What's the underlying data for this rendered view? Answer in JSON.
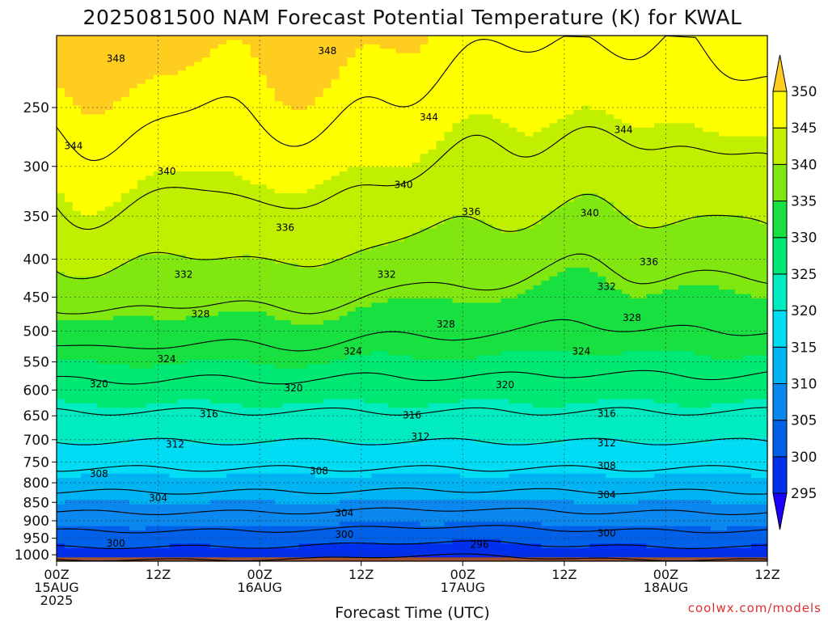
{
  "chart_data": {
    "type": "heatmap",
    "title": "2025081500 NAM Forecast Potential Temperature (K) for KWAL",
    "xlabel": "Forecast Time (UTC)",
    "ylabel": "",
    "x_ticks": [
      {
        "hour": 0,
        "lines": [
          "00Z",
          "15AUG",
          "2025"
        ]
      },
      {
        "hour": 12,
        "lines": [
          "12Z"
        ]
      },
      {
        "hour": 24,
        "lines": [
          "00Z",
          "16AUG"
        ]
      },
      {
        "hour": 36,
        "lines": [
          "12Z"
        ]
      },
      {
        "hour": 48,
        "lines": [
          "00Z",
          "17AUG"
        ]
      },
      {
        "hour": 60,
        "lines": [
          "12Z"
        ]
      },
      {
        "hour": 72,
        "lines": [
          "00Z",
          "18AUG"
        ]
      },
      {
        "hour": 84,
        "lines": [
          "12Z"
        ]
      }
    ],
    "xlim": [
      0,
      84
    ],
    "y_ticks": [
      250,
      300,
      350,
      400,
      450,
      500,
      550,
      600,
      650,
      700,
      750,
      800,
      850,
      900,
      950,
      1000
    ],
    "ylim": [
      1020,
      200
    ],
    "y_scale": "log-pressure",
    "colorbar": {
      "levels": [
        295,
        300,
        305,
        310,
        315,
        320,
        325,
        330,
        335,
        340,
        345,
        350
      ],
      "colors": [
        "#1c00ff",
        "#0030ee",
        "#0060e8",
        "#0a88f0",
        "#00b4f4",
        "#00dcf4",
        "#00ecc0",
        "#00e874",
        "#18e040",
        "#80e810",
        "#c0f000",
        "#ffff00",
        "#ffcc20"
      ]
    },
    "contour_levels": [
      296,
      300,
      304,
      308,
      312,
      316,
      320,
      324,
      328,
      332,
      336,
      340,
      344,
      348
    ],
    "contour_labels": [
      {
        "text": "348",
        "hour": 7,
        "p": 215
      },
      {
        "text": "348",
        "hour": 32,
        "p": 210
      },
      {
        "text": "344",
        "hour": 2,
        "p": 282
      },
      {
        "text": "344",
        "hour": 44,
        "p": 258
      },
      {
        "text": "344",
        "hour": 67,
        "p": 268
      },
      {
        "text": "340",
        "hour": 13,
        "p": 305
      },
      {
        "text": "340",
        "hour": 41,
        "p": 318
      },
      {
        "text": "340",
        "hour": 63,
        "p": 347
      },
      {
        "text": "336",
        "hour": 27,
        "p": 363
      },
      {
        "text": "336",
        "hour": 49,
        "p": 346
      },
      {
        "text": "336",
        "hour": 70,
        "p": 404
      },
      {
        "text": "332",
        "hour": 15,
        "p": 420
      },
      {
        "text": "332",
        "hour": 39,
        "p": 420
      },
      {
        "text": "332",
        "hour": 65,
        "p": 436
      },
      {
        "text": "328",
        "hour": 17,
        "p": 475
      },
      {
        "text": "328",
        "hour": 46,
        "p": 490
      },
      {
        "text": "328",
        "hour": 68,
        "p": 480
      },
      {
        "text": "324",
        "hour": 13,
        "p": 546
      },
      {
        "text": "324",
        "hour": 35,
        "p": 533
      },
      {
        "text": "324",
        "hour": 62,
        "p": 533
      },
      {
        "text": "320",
        "hour": 5,
        "p": 590
      },
      {
        "text": "320",
        "hour": 28,
        "p": 597
      },
      {
        "text": "320",
        "hour": 53,
        "p": 591
      },
      {
        "text": "316",
        "hour": 18,
        "p": 647
      },
      {
        "text": "316",
        "hour": 42,
        "p": 650
      },
      {
        "text": "316",
        "hour": 65,
        "p": 646
      },
      {
        "text": "312",
        "hour": 14,
        "p": 711
      },
      {
        "text": "312",
        "hour": 43,
        "p": 694
      },
      {
        "text": "312",
        "hour": 65,
        "p": 708
      },
      {
        "text": "308",
        "hour": 5,
        "p": 779
      },
      {
        "text": "308",
        "hour": 31,
        "p": 772
      },
      {
        "text": "308",
        "hour": 65,
        "p": 760
      },
      {
        "text": "304",
        "hour": 12,
        "p": 840
      },
      {
        "text": "304",
        "hour": 34,
        "p": 880
      },
      {
        "text": "304",
        "hour": 65,
        "p": 832
      },
      {
        "text": "300",
        "hour": 7,
        "p": 967
      },
      {
        "text": "300",
        "hour": 34,
        "p": 940
      },
      {
        "text": "300",
        "hour": 65,
        "p": 937
      },
      {
        "text": "296",
        "hour": 50,
        "p": 970
      }
    ]
  },
  "credit": "coolwx.com/models"
}
